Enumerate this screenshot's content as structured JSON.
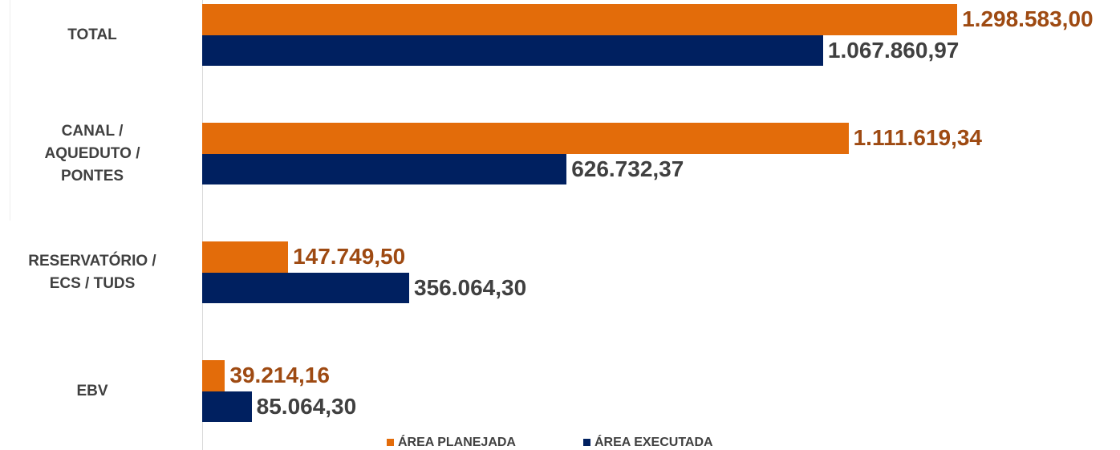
{
  "chart_data": {
    "type": "bar",
    "orientation": "horizontal",
    "categories": [
      "TOTAL",
      "CANAL /\nAQUEDUTO /\nPONTES",
      "RESERVATÓRIO /\nECS / TUDS",
      "EBV"
    ],
    "series": [
      {
        "name": "ÁREA PLANEJADA",
        "color": "#e36c0a",
        "label_color": "#9e4a12",
        "values": [
          1298583.0,
          1111619.34,
          147749.5,
          39214.16
        ],
        "value_labels": [
          "1.298.583,00",
          "1.111.619,34",
          "147.749,50",
          "39.214,16"
        ]
      },
      {
        "name": "ÁREA EXECUTADA",
        "color": "#002060",
        "label_color": "#404040",
        "values": [
          1067860.97,
          626732.37,
          356064.3,
          85064.3
        ],
        "value_labels": [
          "1.067.860,97",
          "626.732,37",
          "356.064,30",
          "85.064,30"
        ]
      }
    ],
    "xlim": [
      0,
      1400000
    ],
    "legend": "bottom"
  }
}
